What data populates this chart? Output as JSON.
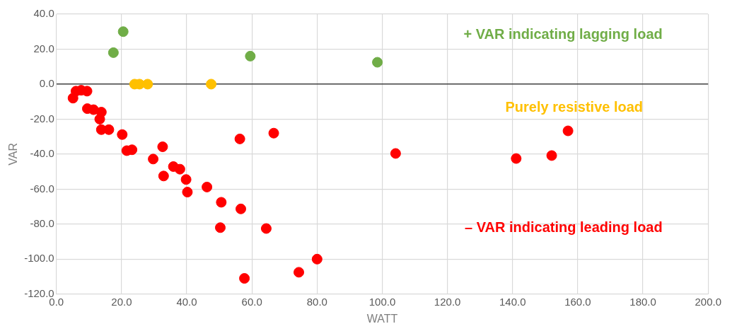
{
  "chart_data": {
    "type": "scatter",
    "xlabel": "WATT",
    "ylabel": "VAR",
    "xlim": [
      0,
      200
    ],
    "ylim": [
      -120,
      40
    ],
    "xticks": [
      {
        "value": 0,
        "label": "0.0"
      },
      {
        "value": 20,
        "label": "20.0"
      },
      {
        "value": 40,
        "label": "40.0"
      },
      {
        "value": 60,
        "label": "60.0"
      },
      {
        "value": 80,
        "label": "80.0"
      },
      {
        "value": 100,
        "label": "100.0"
      },
      {
        "value": 120,
        "label": "120.0"
      },
      {
        "value": 140,
        "label": "140.0"
      },
      {
        "value": 160,
        "label": "160.0"
      },
      {
        "value": 180,
        "label": "180.0"
      },
      {
        "value": 200,
        "label": "200.0"
      }
    ],
    "yticks": [
      {
        "value": -120,
        "label": "-120.0"
      },
      {
        "value": -100,
        "label": "-100.0"
      },
      {
        "value": -80,
        "label": "-80.0"
      },
      {
        "value": -60,
        "label": "-60.0"
      },
      {
        "value": -40,
        "label": "-40.0"
      },
      {
        "value": -20,
        "label": "-20.0"
      },
      {
        "value": 0,
        "label": "0.0"
      },
      {
        "value": 20,
        "label": "20.0"
      },
      {
        "value": 40,
        "label": "40.0"
      }
    ],
    "grid": true,
    "legend": false,
    "marker": "circle",
    "series": [
      {
        "color": "#70ad47",
        "x": [
          20.5,
          17.5,
          59.5,
          98.5
        ],
        "values": [
          30,
          18,
          16,
          12.5
        ]
      },
      {
        "color": "#ffc000",
        "x": [
          24,
          25.5,
          28,
          47.5
        ],
        "values": [
          0,
          0,
          0,
          0
        ]
      },
      {
        "color": "#ff0000",
        "x": [
          5.1,
          6,
          7.6,
          9.4,
          9.5,
          11.4,
          13.8,
          13.3,
          13.8,
          16.1,
          20.2,
          21.6,
          23.2,
          32.6,
          29.7,
          32.9,
          35.9,
          37.9,
          39.8,
          40.2,
          46.2,
          50.6,
          56.6,
          50.3,
          64.4,
          57.7,
          56.3,
          66.7,
          74.4,
          80,
          104.1,
          141.1,
          152,
          157
        ],
        "values": [
          -8,
          -4,
          -3.5,
          -4,
          -14,
          -14.6,
          -16,
          -20,
          -26,
          -26,
          -28.8,
          -38,
          -37.5,
          -35.8,
          -42.8,
          -52.5,
          -47.1,
          -48.6,
          -54.5,
          -61.7,
          -58.8,
          -67.5,
          -71.3,
          -82,
          -82.5,
          -111,
          -31.3,
          -28,
          -107.5,
          -100,
          -39.6,
          -42.5,
          -40.8,
          -26.7
        ]
      }
    ],
    "annotations": [
      "+ VAR indicating lagging load",
      "Purely resistive load",
      "– VAR indicating leading load"
    ]
  }
}
